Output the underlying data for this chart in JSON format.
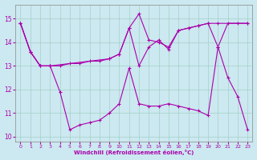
{
  "xlabel": "Windchill (Refroidissement éolien,°C)",
  "xlim": [
    -0.5,
    23.5
  ],
  "ylim": [
    9.8,
    15.6
  ],
  "yticks": [
    10,
    11,
    12,
    13,
    14,
    15
  ],
  "xticks": [
    0,
    1,
    2,
    3,
    4,
    5,
    6,
    7,
    8,
    9,
    10,
    11,
    12,
    13,
    14,
    15,
    16,
    17,
    18,
    19,
    20,
    21,
    22,
    23
  ],
  "bg_color": "#cce8f0",
  "line_color": "#aa00aa",
  "line1_x": [
    0,
    1,
    2,
    3,
    4,
    5,
    6,
    7,
    8,
    9,
    10,
    11,
    12,
    13,
    14,
    15,
    16,
    17,
    18,
    19,
    20,
    21,
    22,
    23
  ],
  "line1_y": [
    14.8,
    13.6,
    13.0,
    13.0,
    11.9,
    10.3,
    10.5,
    10.6,
    10.7,
    11.0,
    11.4,
    12.9,
    11.4,
    11.3,
    11.3,
    11.4,
    11.3,
    11.2,
    11.1,
    10.9,
    13.8,
    12.5,
    11.7,
    10.3
  ],
  "line2_x": [
    0,
    1,
    2,
    3,
    9,
    10,
    11,
    12,
    13,
    14,
    15,
    16,
    17,
    18,
    19,
    20,
    23
  ],
  "line2_y": [
    14.8,
    13.6,
    13.0,
    13.0,
    13.3,
    13.5,
    14.6,
    13.0,
    13.8,
    14.1,
    13.7,
    14.5,
    14.6,
    14.7,
    14.8,
    14.8,
    14.8
  ],
  "line3_x": [
    0,
    1,
    2,
    3,
    4,
    5,
    6,
    7,
    8,
    9,
    10,
    11,
    12,
    13,
    14,
    15,
    16,
    17,
    18,
    19,
    20,
    21,
    22,
    23
  ],
  "line3_y": [
    14.8,
    13.6,
    13.0,
    13.0,
    13.0,
    13.1,
    13.1,
    13.2,
    13.2,
    13.3,
    13.5,
    14.6,
    15.2,
    14.1,
    14.0,
    13.8,
    14.5,
    14.6,
    14.7,
    14.8,
    13.8,
    14.8,
    14.8,
    14.8
  ]
}
